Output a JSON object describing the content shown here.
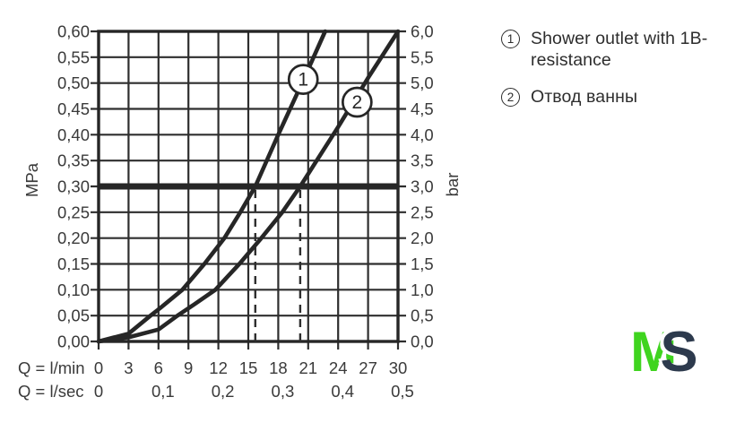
{
  "colors": {
    "ink": "#262626",
    "grid": "#2e2e2e",
    "label": "#3a3a3a",
    "logo_green": "#3fd41f",
    "logo_navy": "#2d3a4d"
  },
  "legend": {
    "items": [
      {
        "marker": "1",
        "label": "Shower outlet with 1B-resistance"
      },
      {
        "marker": "2",
        "label": "Отвод ванны"
      }
    ]
  },
  "logo": {
    "m": "M",
    "s": "S"
  },
  "chart_data": {
    "type": "line",
    "title": "",
    "x_axis_primary_label": "Q = l/min",
    "x_axis_secondary_label": "Q = l/sec",
    "y_axis_left_unit": "MPa",
    "y_axis_right_unit": "bar",
    "x_range_lmin": [
      0,
      30
    ],
    "y_range_mpa": [
      0,
      0.6
    ],
    "grid": true,
    "x_ticks_lmin": {
      "values": [
        0,
        3,
        6,
        9,
        12,
        15,
        18,
        21,
        24,
        27,
        30
      ],
      "labels": [
        "0",
        "3",
        "6",
        "9",
        "12",
        "15",
        "18",
        "21",
        "24",
        "27",
        "30"
      ]
    },
    "x_ticks_lsec": {
      "values": [
        0,
        6,
        12,
        18,
        24,
        30
      ],
      "labels": [
        "0",
        "0,1",
        "0,2",
        "0,3",
        "0,4",
        "0,5"
      ]
    },
    "y_ticks_mpa": {
      "values": [
        0.6,
        0.55,
        0.5,
        0.45,
        0.4,
        0.35,
        0.3,
        0.25,
        0.2,
        0.15,
        0.1,
        0.05,
        0.0
      ],
      "labels": [
        "0,60",
        "0,55",
        "0,50",
        "0,45",
        "0,40",
        "0,35",
        "0,30",
        "0,25",
        "0,20",
        "0,15",
        "0,10",
        "0,05",
        "0,00"
      ]
    },
    "y_ticks_bar": {
      "labels": [
        "6,0",
        "5,5",
        "5,0",
        "4,5",
        "4,0",
        "3,5",
        "3,0",
        "2,5",
        "2,0",
        "1,5",
        "1,0",
        "0,5",
        "0,0"
      ]
    },
    "reference_line_mpa": 0.3,
    "dashed_guides_lmin": [
      15.7,
      20.2
    ],
    "series": [
      {
        "id": "1",
        "name": "Shower outlet with 1B-resistance",
        "marker_at": [
          20.5,
          0.507
        ],
        "points": [
          [
            0,
            0
          ],
          [
            3,
            0.015
          ],
          [
            5.2,
            0.05
          ],
          [
            6.2,
            0.065
          ],
          [
            8.4,
            0.1
          ],
          [
            10.6,
            0.15
          ],
          [
            12.6,
            0.2
          ],
          [
            14.2,
            0.25
          ],
          [
            15.7,
            0.3
          ],
          [
            18,
            0.4
          ],
          [
            20.5,
            0.505
          ],
          [
            22.7,
            0.6
          ]
        ]
      },
      {
        "id": "2",
        "name": "Отвод ванны",
        "marker_at": [
          25.9,
          0.463
        ],
        "points": [
          [
            0,
            0
          ],
          [
            3,
            0.008
          ],
          [
            6,
            0.023
          ],
          [
            7.9,
            0.05
          ],
          [
            9.6,
            0.072
          ],
          [
            11.7,
            0.1
          ],
          [
            14.1,
            0.15
          ],
          [
            16.3,
            0.2
          ],
          [
            18.4,
            0.25
          ],
          [
            20.2,
            0.3
          ],
          [
            24,
            0.415
          ],
          [
            27,
            0.51
          ],
          [
            30,
            0.6
          ]
        ]
      }
    ]
  }
}
